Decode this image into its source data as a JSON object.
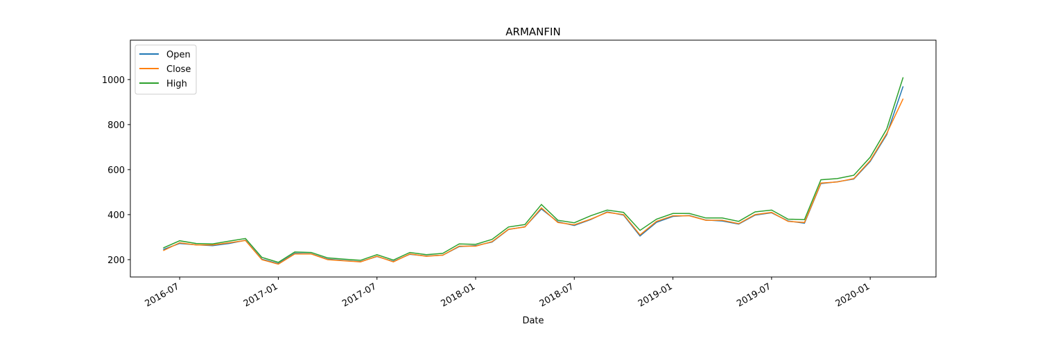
{
  "chart_data": {
    "type": "line",
    "title": "ARMANFIN",
    "x_label": "Date",
    "x": [
      "2016-06",
      "2016-07",
      "2016-08",
      "2016-09",
      "2016-10",
      "2016-11",
      "2016-12",
      "2017-01",
      "2017-02",
      "2017-03",
      "2017-04",
      "2017-05",
      "2017-06",
      "2017-07",
      "2017-08",
      "2017-09",
      "2017-10",
      "2017-11",
      "2017-12",
      "2018-01",
      "2018-02",
      "2018-03",
      "2018-04",
      "2018-05",
      "2018-06",
      "2018-07",
      "2018-08",
      "2018-09",
      "2018-10",
      "2018-11",
      "2018-12",
      "2019-01",
      "2019-02",
      "2019-03",
      "2019-04",
      "2019-05",
      "2019-06",
      "2019-07",
      "2019-08",
      "2019-09",
      "2019-10",
      "2019-11",
      "2019-12",
      "2020-01",
      "2020-02",
      "2020-03"
    ],
    "series": [
      {
        "name": "Open",
        "color": "#1f77b4",
        "values": [
          245,
          272,
          266,
          262,
          272,
          286,
          202,
          182,
          228,
          226,
          202,
          196,
          191,
          214,
          192,
          224,
          216,
          220,
          258,
          262,
          278,
          334,
          346,
          425,
          368,
          352,
          378,
          412,
          398,
          305,
          366,
          392,
          396,
          376,
          372,
          358,
          398,
          408,
          372,
          362,
          538,
          546,
          558,
          636,
          755,
          970
        ]
      },
      {
        "name": "Close",
        "color": "#ff7f0e",
        "values": [
          240,
          275,
          265,
          265,
          275,
          285,
          200,
          180,
          225,
          225,
          200,
          195,
          190,
          215,
          190,
          225,
          215,
          220,
          260,
          260,
          280,
          335,
          345,
          430,
          365,
          355,
          380,
          410,
          400,
          310,
          370,
          395,
          395,
          375,
          375,
          360,
          400,
          410,
          370,
          365,
          540,
          545,
          560,
          640,
          760,
          915
        ]
      },
      {
        "name": "High",
        "color": "#2ca02c",
        "values": [
          252,
          284,
          272,
          270,
          282,
          294,
          210,
          188,
          234,
          232,
          208,
          202,
          197,
          222,
          198,
          232,
          222,
          228,
          270,
          268,
          290,
          345,
          356,
          445,
          375,
          364,
          395,
          420,
          410,
          330,
          380,
          405,
          405,
          385,
          385,
          370,
          412,
          420,
          380,
          378,
          555,
          560,
          575,
          655,
          780,
          1010
        ]
      }
    ],
    "xlim": [
      "2016-04",
      "2020-05"
    ],
    "xticks": [
      "2016-07",
      "2017-01",
      "2017-07",
      "2018-01",
      "2018-07",
      "2019-01",
      "2019-07",
      "2020-01"
    ],
    "ylim": [
      123,
      1175
    ],
    "yticks": [
      200,
      400,
      600,
      800,
      1000
    ],
    "legend": "upper left"
  }
}
